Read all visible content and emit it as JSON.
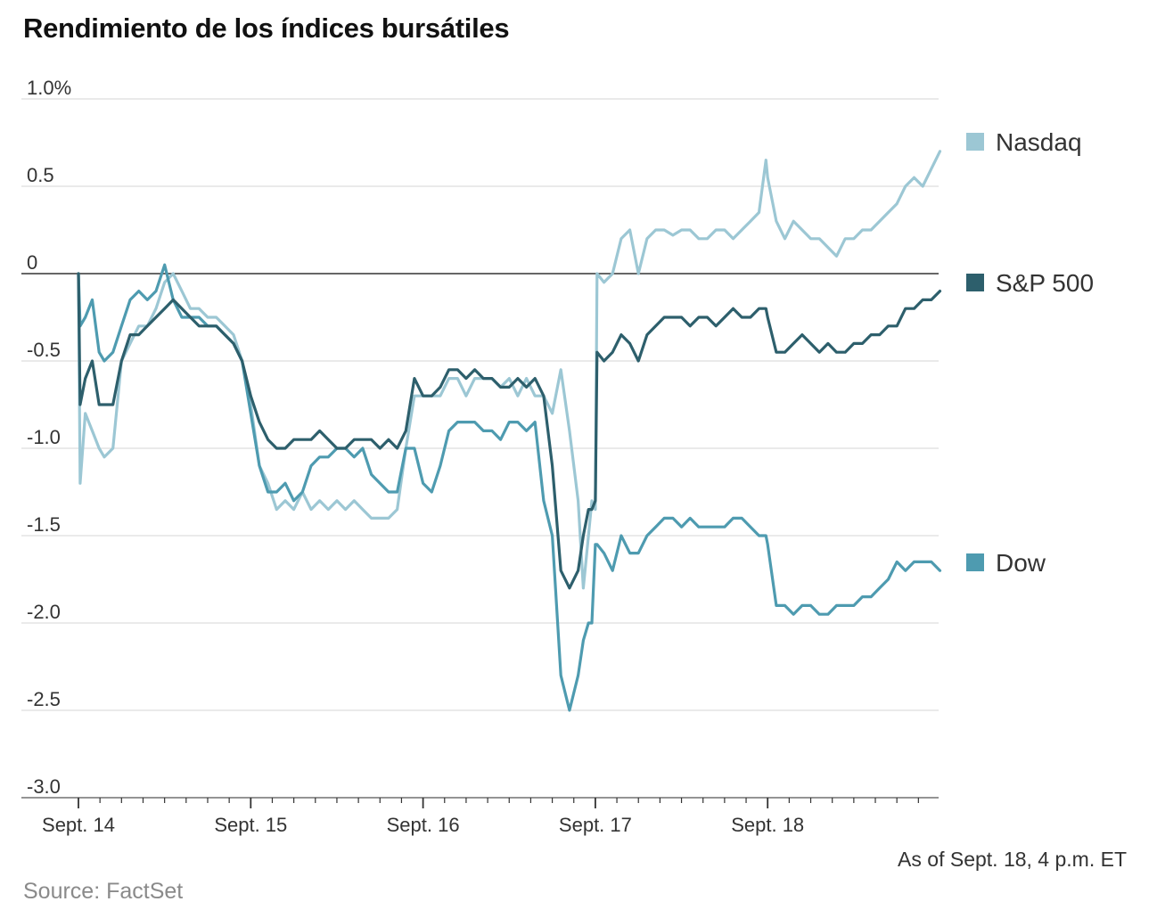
{
  "title": "Rendimiento de los índices bursátiles",
  "source": "Source: FactSet",
  "note": "As of Sept. 18, 4 p.m. ET",
  "colors": {
    "nasdaq": "#9cc7d4",
    "sp500": "#2d5f6c",
    "dow": "#4e9bb0",
    "zero_line": "#333333",
    "grid": "#dddddd"
  },
  "chart_data": {
    "type": "line",
    "title": "Rendimiento de los índices bursátiles",
    "xlabel": "",
    "ylabel": "",
    "ylim": [
      -3.0,
      1.0
    ],
    "xlim": [
      0,
      5.5
    ],
    "grid": true,
    "legend": "right",
    "y_ticks": [
      {
        "value": 1.0,
        "label": "1.0%"
      },
      {
        "value": 0.5,
        "label": "0.5"
      },
      {
        "value": 0,
        "label": "0"
      },
      {
        "value": -0.5,
        "label": "-0.5"
      },
      {
        "value": -1.0,
        "label": "-1.0"
      },
      {
        "value": -1.5,
        "label": "-1.5"
      },
      {
        "value": -2.0,
        "label": "-2.0"
      },
      {
        "value": -2.5,
        "label": "-2.5"
      },
      {
        "value": -3.0,
        "label": "-3.0"
      }
    ],
    "x_ticks": [
      {
        "value": 0,
        "label": "Sept. 14"
      },
      {
        "value": 1,
        "label": "Sept. 15"
      },
      {
        "value": 2,
        "label": "Sept. 16"
      },
      {
        "value": 3,
        "label": "Sept. 17"
      },
      {
        "value": 4,
        "label": "Sept. 18"
      }
    ],
    "series": [
      {
        "name": "Nasdaq",
        "key": "nasdaq",
        "x": [
          0,
          0.01,
          0.04,
          0.08,
          0.12,
          0.15,
          0.2,
          0.25,
          0.3,
          0.35,
          0.4,
          0.45,
          0.5,
          0.55,
          0.6,
          0.65,
          0.7,
          0.75,
          0.8,
          0.85,
          0.9,
          0.95,
          1.0,
          1.05,
          1.1,
          1.15,
          1.2,
          1.25,
          1.3,
          1.35,
          1.4,
          1.45,
          1.5,
          1.55,
          1.6,
          1.65,
          1.7,
          1.75,
          1.8,
          1.85,
          1.9,
          1.95,
          2.0,
          2.05,
          2.1,
          2.15,
          2.2,
          2.25,
          2.3,
          2.35,
          2.4,
          2.45,
          2.5,
          2.55,
          2.6,
          2.65,
          2.7,
          2.75,
          2.8,
          2.85,
          2.9,
          2.93,
          2.96,
          2.98,
          3.0,
          3.01,
          3.05,
          3.1,
          3.15,
          3.2,
          3.25,
          3.3,
          3.35,
          3.4,
          3.45,
          3.5,
          3.55,
          3.6,
          3.65,
          3.7,
          3.75,
          3.8,
          3.85,
          3.9,
          3.95,
          3.99,
          4.0,
          4.05,
          4.1,
          4.15,
          4.2,
          4.25,
          4.3,
          4.35,
          4.4,
          4.45,
          4.5,
          4.55,
          4.6,
          4.65,
          4.7,
          4.75,
          4.8,
          4.85,
          4.9,
          4.95,
          5.0
        ],
        "y": [
          0.0,
          -1.2,
          -0.8,
          -0.9,
          -1.0,
          -1.05,
          -1.0,
          -0.5,
          -0.4,
          -0.3,
          -0.3,
          -0.2,
          -0.05,
          0.0,
          -0.1,
          -0.2,
          -0.2,
          -0.25,
          -0.25,
          -0.3,
          -0.35,
          -0.5,
          -0.75,
          -1.1,
          -1.2,
          -1.35,
          -1.3,
          -1.35,
          -1.25,
          -1.35,
          -1.3,
          -1.35,
          -1.3,
          -1.35,
          -1.3,
          -1.35,
          -1.4,
          -1.4,
          -1.4,
          -1.35,
          -1.0,
          -0.7,
          -0.7,
          -0.7,
          -0.7,
          -0.6,
          -0.6,
          -0.7,
          -0.6,
          -0.6,
          -0.6,
          -0.65,
          -0.6,
          -0.7,
          -0.6,
          -0.7,
          -0.7,
          -0.8,
          -0.55,
          -0.9,
          -1.3,
          -1.8,
          -1.5,
          -1.3,
          -1.35,
          0.0,
          -0.05,
          0.0,
          0.2,
          0.25,
          0.0,
          0.2,
          0.25,
          0.25,
          0.22,
          0.25,
          0.25,
          0.2,
          0.2,
          0.25,
          0.25,
          0.2,
          0.25,
          0.3,
          0.35,
          0.65,
          0.55,
          0.3,
          0.2,
          0.3,
          0.25,
          0.2,
          0.2,
          0.15,
          0.1,
          0.2,
          0.2,
          0.25,
          0.25,
          0.3,
          0.35,
          0.4,
          0.5,
          0.55,
          0.5,
          0.6,
          0.7
        ]
      },
      {
        "name": "S&P 500",
        "key": "sp500",
        "x": [
          0,
          0.01,
          0.04,
          0.08,
          0.12,
          0.15,
          0.2,
          0.25,
          0.3,
          0.35,
          0.4,
          0.45,
          0.5,
          0.55,
          0.6,
          0.65,
          0.7,
          0.75,
          0.8,
          0.85,
          0.9,
          0.95,
          1.0,
          1.05,
          1.1,
          1.15,
          1.2,
          1.25,
          1.3,
          1.35,
          1.4,
          1.45,
          1.5,
          1.55,
          1.6,
          1.65,
          1.7,
          1.75,
          1.8,
          1.85,
          1.9,
          1.95,
          2.0,
          2.05,
          2.1,
          2.15,
          2.2,
          2.25,
          2.3,
          2.35,
          2.4,
          2.45,
          2.5,
          2.55,
          2.6,
          2.65,
          2.7,
          2.75,
          2.8,
          2.85,
          2.9,
          2.93,
          2.96,
          2.98,
          3.0,
          3.01,
          3.05,
          3.1,
          3.15,
          3.2,
          3.25,
          3.3,
          3.35,
          3.4,
          3.45,
          3.5,
          3.55,
          3.6,
          3.65,
          3.7,
          3.75,
          3.8,
          3.85,
          3.9,
          3.95,
          3.99,
          4.0,
          4.05,
          4.1,
          4.15,
          4.2,
          4.25,
          4.3,
          4.35,
          4.4,
          4.45,
          4.5,
          4.55,
          4.6,
          4.65,
          4.7,
          4.75,
          4.8,
          4.85,
          4.9,
          4.95,
          5.0
        ],
        "y": [
          0.0,
          -0.75,
          -0.6,
          -0.5,
          -0.75,
          -0.75,
          -0.75,
          -0.5,
          -0.35,
          -0.35,
          -0.3,
          -0.25,
          -0.2,
          -0.15,
          -0.2,
          -0.25,
          -0.3,
          -0.3,
          -0.3,
          -0.35,
          -0.4,
          -0.5,
          -0.7,
          -0.85,
          -0.95,
          -1.0,
          -1.0,
          -0.95,
          -0.95,
          -0.95,
          -0.9,
          -0.95,
          -1.0,
          -1.0,
          -0.95,
          -0.95,
          -0.95,
          -1.0,
          -0.95,
          -1.0,
          -0.9,
          -0.6,
          -0.7,
          -0.7,
          -0.65,
          -0.55,
          -0.55,
          -0.6,
          -0.55,
          -0.6,
          -0.6,
          -0.65,
          -0.65,
          -0.6,
          -0.65,
          -0.6,
          -0.7,
          -1.1,
          -1.7,
          -1.8,
          -1.7,
          -1.5,
          -1.35,
          -1.35,
          -1.3,
          -0.45,
          -0.5,
          -0.45,
          -0.35,
          -0.4,
          -0.5,
          -0.35,
          -0.3,
          -0.25,
          -0.25,
          -0.25,
          -0.3,
          -0.25,
          -0.25,
          -0.3,
          -0.25,
          -0.2,
          -0.25,
          -0.25,
          -0.2,
          -0.2,
          -0.25,
          -0.45,
          -0.45,
          -0.4,
          -0.35,
          -0.4,
          -0.45,
          -0.4,
          -0.45,
          -0.45,
          -0.4,
          -0.4,
          -0.35,
          -0.35,
          -0.3,
          -0.3,
          -0.2,
          -0.2,
          -0.15,
          -0.15,
          -0.1
        ]
      },
      {
        "name": "Dow",
        "key": "dow",
        "x": [
          0,
          0.01,
          0.04,
          0.08,
          0.12,
          0.15,
          0.2,
          0.25,
          0.3,
          0.35,
          0.4,
          0.45,
          0.5,
          0.55,
          0.6,
          0.65,
          0.7,
          0.75,
          0.8,
          0.85,
          0.9,
          0.95,
          1.0,
          1.05,
          1.1,
          1.15,
          1.2,
          1.25,
          1.3,
          1.35,
          1.4,
          1.45,
          1.5,
          1.55,
          1.6,
          1.65,
          1.7,
          1.75,
          1.8,
          1.85,
          1.9,
          1.95,
          2.0,
          2.05,
          2.1,
          2.15,
          2.2,
          2.25,
          2.3,
          2.35,
          2.4,
          2.45,
          2.5,
          2.55,
          2.6,
          2.65,
          2.7,
          2.75,
          2.8,
          2.85,
          2.9,
          2.93,
          2.96,
          2.98,
          3.0,
          3.01,
          3.05,
          3.1,
          3.15,
          3.2,
          3.25,
          3.3,
          3.35,
          3.4,
          3.45,
          3.5,
          3.55,
          3.6,
          3.65,
          3.7,
          3.75,
          3.8,
          3.85,
          3.9,
          3.95,
          3.99,
          4.0,
          4.05,
          4.1,
          4.15,
          4.2,
          4.25,
          4.3,
          4.35,
          4.4,
          4.45,
          4.5,
          4.55,
          4.6,
          4.65,
          4.7,
          4.75,
          4.8,
          4.85,
          4.9,
          4.95,
          5.0
        ],
        "y": [
          0.0,
          -0.3,
          -0.25,
          -0.15,
          -0.45,
          -0.5,
          -0.45,
          -0.3,
          -0.15,
          -0.1,
          -0.15,
          -0.1,
          0.05,
          -0.15,
          -0.25,
          -0.25,
          -0.25,
          -0.3,
          -0.3,
          -0.35,
          -0.4,
          -0.5,
          -0.8,
          -1.1,
          -1.25,
          -1.25,
          -1.2,
          -1.3,
          -1.25,
          -1.1,
          -1.05,
          -1.05,
          -1.0,
          -1.0,
          -1.05,
          -1.0,
          -1.15,
          -1.2,
          -1.25,
          -1.25,
          -1.0,
          -1.0,
          -1.2,
          -1.25,
          -1.1,
          -0.9,
          -0.85,
          -0.85,
          -0.85,
          -0.9,
          -0.9,
          -0.95,
          -0.85,
          -0.85,
          -0.9,
          -0.85,
          -1.3,
          -1.5,
          -2.3,
          -2.5,
          -2.3,
          -2.1,
          -2.0,
          -2.0,
          -1.55,
          -1.55,
          -1.6,
          -1.7,
          -1.5,
          -1.6,
          -1.6,
          -1.5,
          -1.45,
          -1.4,
          -1.4,
          -1.45,
          -1.4,
          -1.45,
          -1.45,
          -1.45,
          -1.45,
          -1.4,
          -1.4,
          -1.45,
          -1.5,
          -1.5,
          -1.55,
          -1.9,
          -1.9,
          -1.95,
          -1.9,
          -1.9,
          -1.95,
          -1.95,
          -1.9,
          -1.9,
          -1.9,
          -1.85,
          -1.85,
          -1.8,
          -1.75,
          -1.65,
          -1.7,
          -1.65,
          -1.65,
          -1.65,
          -1.7
        ]
      }
    ]
  }
}
